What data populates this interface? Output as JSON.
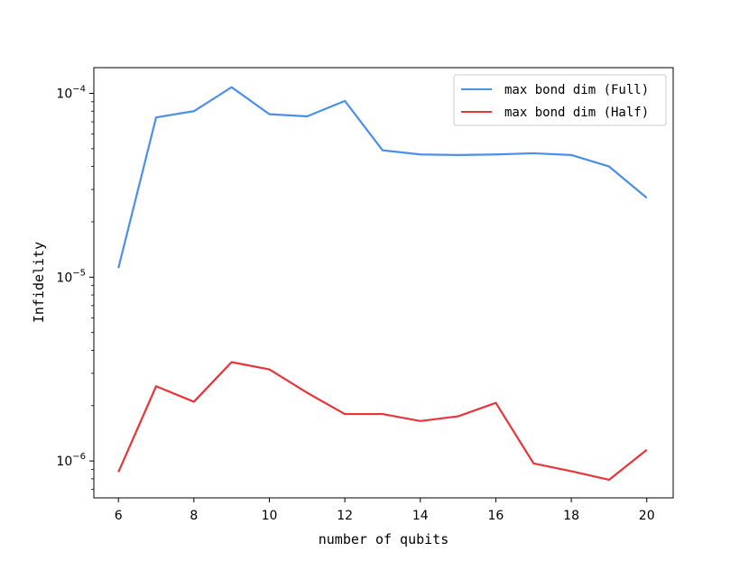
{
  "chart_data": {
    "type": "line",
    "title": "",
    "xlabel": "number of qubits",
    "ylabel": "Infidelity",
    "x": [
      6,
      7,
      8,
      9,
      10,
      11,
      12,
      13,
      14,
      15,
      16,
      17,
      18,
      19,
      20
    ],
    "xlim": [
      5.35,
      20.7
    ],
    "ylim": [
      6.3e-07,
      0.000138
    ],
    "yscale": "log",
    "x_ticks": [
      6,
      8,
      10,
      12,
      14,
      16,
      18,
      20
    ],
    "x_tick_labels": [
      "6",
      "8",
      "10",
      "12",
      "14",
      "16",
      "18",
      "20"
    ],
    "y_ticks": [
      1e-06,
      1e-05,
      0.0001
    ],
    "y_tick_labels": [
      {
        "base": "10",
        "exp": "−6"
      },
      {
        "base": "10",
        "exp": "−5"
      },
      {
        "base": "10",
        "exp": "−4"
      }
    ],
    "grid": false,
    "legend_position": "top-right",
    "series": [
      {
        "name": "max bond dim (Full)",
        "color": "#4a90e8",
        "values": [
          1.12e-05,
          7.4e-05,
          8e-05,
          0.000108,
          7.7e-05,
          7.5e-05,
          9.1e-05,
          4.9e-05,
          4.65e-05,
          4.62e-05,
          4.65e-05,
          4.72e-05,
          4.62e-05,
          4e-05,
          2.7e-05
        ]
      },
      {
        "name": "max bond dim (Half)",
        "color": "#e8353a",
        "values": [
          8.7e-07,
          2.55e-06,
          2.1e-06,
          3.45e-06,
          3.15e-06,
          2.35e-06,
          1.8e-06,
          1.8e-06,
          1.65e-06,
          1.75e-06,
          2.07e-06,
          9.7e-07,
          8.8e-07,
          7.9e-07,
          1.15e-06
        ]
      }
    ]
  }
}
